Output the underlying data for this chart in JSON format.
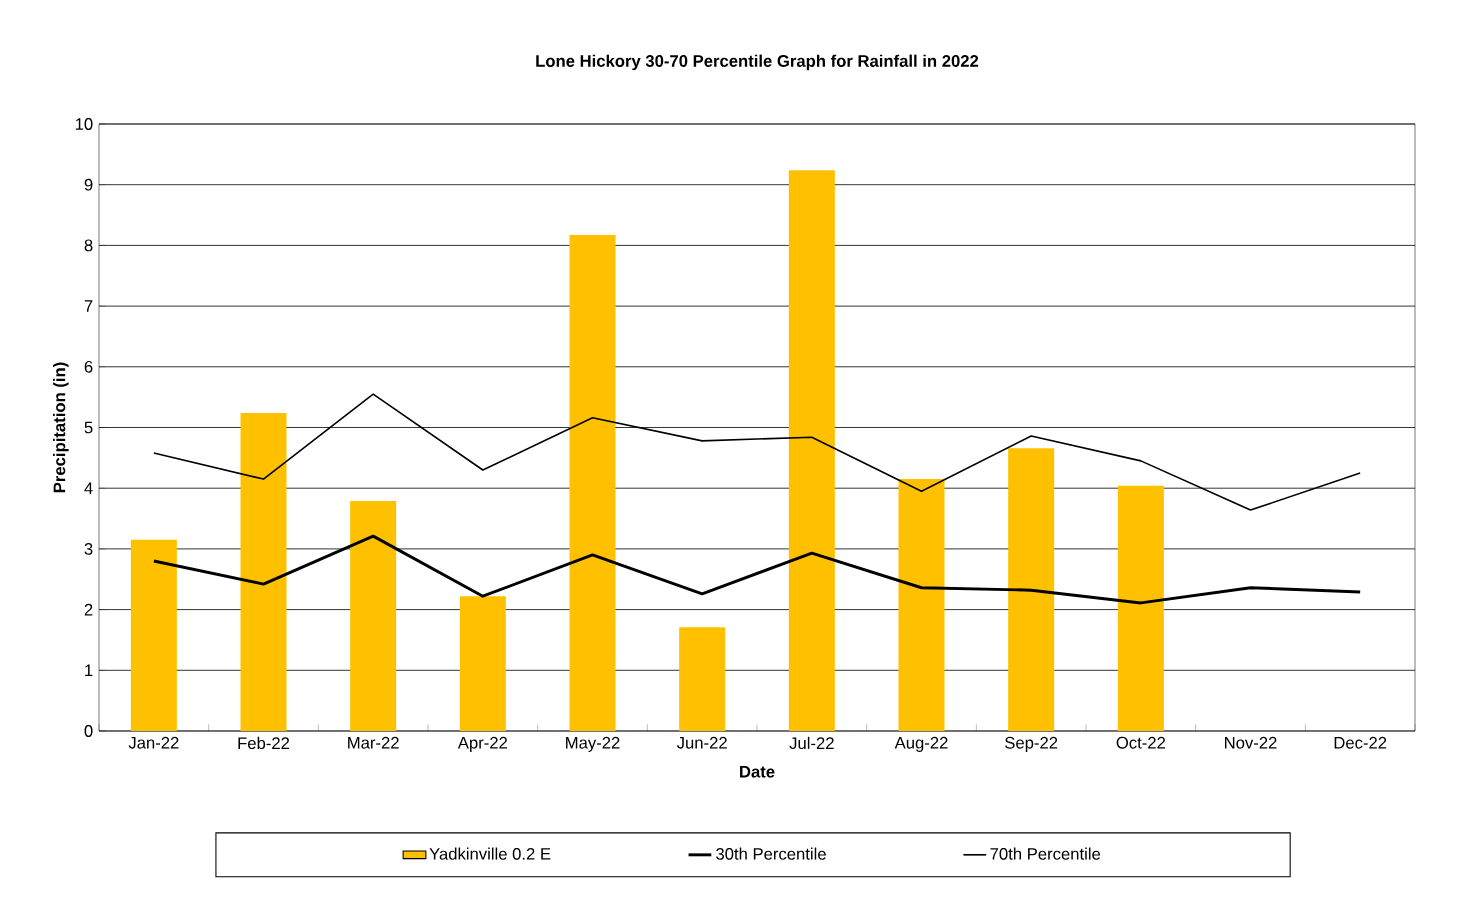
{
  "chart_data": {
    "type": "bar",
    "title": "Lone Hickory 30-70 Percentile Graph for Rainfall in 2022",
    "xlabel": "Date",
    "ylabel": "Precipitation (in)",
    "categories": [
      "Jan-22",
      "Feb-22",
      "Mar-22",
      "Apr-22",
      "May-22",
      "Jun-22",
      "Jul-22",
      "Aug-22",
      "Sep-22",
      "Oct-22",
      "Nov-22",
      "Dec-22"
    ],
    "series": [
      {
        "name": "Yadkinville 0.2 E",
        "color": "#ffc000",
        "values": [
          3.15,
          5.24,
          3.79,
          2.22,
          8.17,
          1.71,
          9.24,
          4.15,
          4.66,
          4.04,
          null,
          null
        ]
      },
      {
        "name": "30th Percentile",
        "type": "line",
        "color": "#000000",
        "values": [
          2.8,
          2.42,
          3.21,
          2.22,
          2.9,
          2.26,
          2.93,
          2.36,
          2.32,
          2.11,
          2.36,
          2.29
        ]
      },
      {
        "name": "70th Percentile",
        "type": "line",
        "color": "#000000",
        "values": [
          4.58,
          4.15,
          5.55,
          4.3,
          5.16,
          4.78,
          4.84,
          3.95,
          4.86,
          4.45,
          3.64,
          4.25
        ]
      }
    ],
    "ylim": [
      0,
      10
    ],
    "yticks": [
      0,
      1,
      2,
      3,
      4,
      5,
      6,
      7,
      8,
      9,
      10
    ],
    "grid": "y",
    "legend": "bottom",
    "marker": "none"
  }
}
